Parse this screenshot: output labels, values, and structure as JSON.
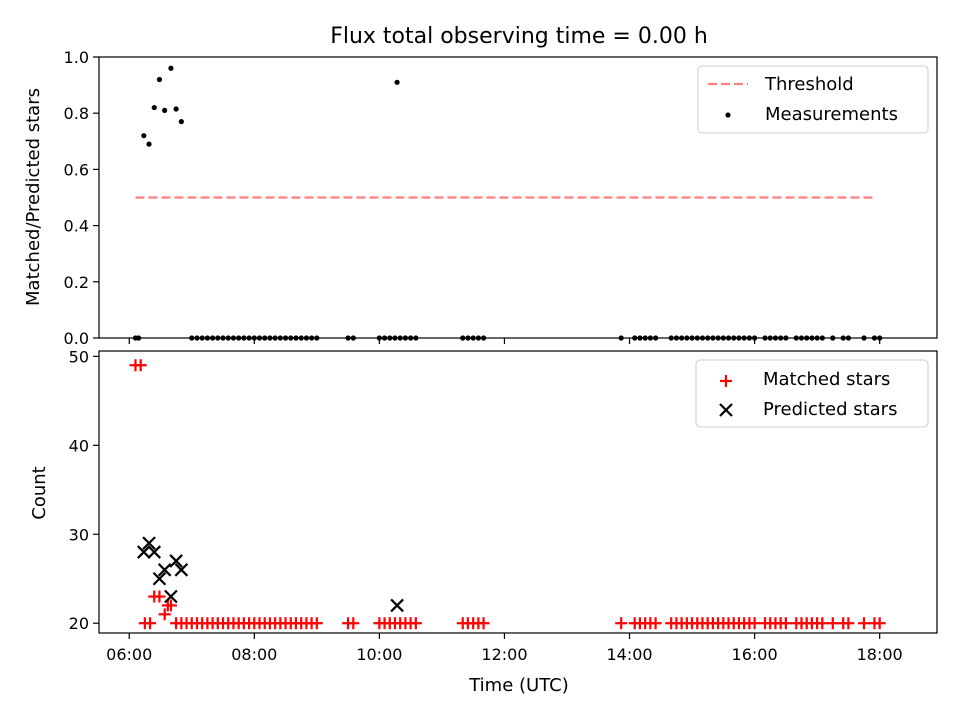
{
  "chart_data": [
    {
      "type": "scatter",
      "title": "Flux total observing time = 0.00 h",
      "xlabel": "",
      "ylabel": "Matched/Predicted stars",
      "xlim": [
        "05:31",
        "18:55"
      ],
      "ylim": [
        0,
        1
      ],
      "yticks": [
        "0.0",
        "0.2",
        "0.4",
        "0.6",
        "0.8",
        "1.0"
      ],
      "legend_position": "top-right",
      "threshold": {
        "name": "Threshold",
        "value": 0.5,
        "x_range": [
          "06:06",
          "17:57"
        ],
        "color": "#ff7f7f"
      },
      "measurements": {
        "name": "Measurements",
        "color": "#000000",
        "x": [
          "06:06",
          "06:09",
          "06:14",
          "06:19",
          "06:24",
          "06:29",
          "06:34",
          "06:40",
          "06:45",
          "06:50",
          "07:00",
          "07:05",
          "07:10",
          "07:15",
          "07:20",
          "07:25",
          "07:30",
          "07:35",
          "07:40",
          "07:45",
          "07:50",
          "07:55",
          "08:00",
          "08:05",
          "08:10",
          "08:15",
          "08:20",
          "08:25",
          "08:30",
          "08:35",
          "08:40",
          "08:45",
          "08:50",
          "08:55",
          "09:00",
          "09:30",
          "09:35",
          "10:00",
          "10:05",
          "10:10",
          "10:15",
          "10:20",
          "10:25",
          "10:30",
          "10:35",
          "11:20",
          "11:25",
          "11:30",
          "11:35",
          "11:40",
          "13:52",
          "14:05",
          "14:10",
          "14:15",
          "14:20",
          "14:25",
          "14:40",
          "14:45",
          "14:50",
          "14:55",
          "15:00",
          "15:05",
          "15:10",
          "15:15",
          "15:20",
          "15:25",
          "15:30",
          "15:35",
          "15:40",
          "15:45",
          "15:50",
          "15:55",
          "16:00",
          "16:10",
          "16:15",
          "16:20",
          "16:25",
          "16:30",
          "16:40",
          "16:45",
          "16:50",
          "16:55",
          "17:00",
          "17:05",
          "17:15",
          "17:25",
          "17:30",
          "17:45",
          "17:55",
          "18:00",
          "10:17"
        ],
        "y": [
          0,
          0,
          0.72,
          0.69,
          0.82,
          0.92,
          0.81,
          0.96,
          0.815,
          0.77,
          0,
          0,
          0,
          0,
          0,
          0,
          0,
          0,
          0,
          0,
          0,
          0,
          0,
          0,
          0,
          0,
          0,
          0,
          0,
          0,
          0,
          0,
          0,
          0,
          0,
          0,
          0,
          0,
          0,
          0,
          0,
          0,
          0,
          0,
          0,
          0,
          0,
          0,
          0,
          0,
          0,
          0,
          0,
          0,
          0,
          0,
          0,
          0,
          0,
          0,
          0,
          0,
          0,
          0,
          0,
          0,
          0,
          0,
          0,
          0,
          0,
          0,
          0,
          0,
          0,
          0,
          0,
          0,
          0,
          0,
          0,
          0,
          0,
          0,
          0,
          0,
          0,
          0,
          0,
          0,
          0.91
        ]
      }
    },
    {
      "type": "scatter",
      "title": "",
      "xlabel": "Time (UTC)",
      "ylabel": "Count",
      "xlim": [
        "05:31",
        "18:55"
      ],
      "ylim": [
        18.9,
        50.6
      ],
      "xticks": [
        "06:00",
        "08:00",
        "10:00",
        "12:00",
        "14:00",
        "16:00",
        "18:00"
      ],
      "yticks": [
        "20",
        "30",
        "40",
        "50"
      ],
      "legend_position": "top-right",
      "series": [
        {
          "name": "Matched stars",
          "marker": "plus",
          "color": "#ff0000",
          "x": [
            "06:06",
            "06:11",
            "06:15",
            "06:20",
            "06:24",
            "06:29",
            "06:34",
            "06:37",
            "06:40",
            "06:45",
            "06:50",
            "06:55",
            "07:00",
            "07:05",
            "07:10",
            "07:15",
            "07:20",
            "07:25",
            "07:30",
            "07:35",
            "07:40",
            "07:45",
            "07:50",
            "07:55",
            "08:00",
            "08:05",
            "08:10",
            "08:15",
            "08:20",
            "08:25",
            "08:30",
            "08:35",
            "08:40",
            "08:45",
            "08:50",
            "08:55",
            "09:00",
            "09:30",
            "09:35",
            "10:00",
            "10:05",
            "10:10",
            "10:15",
            "10:20",
            "10:25",
            "10:30",
            "10:35",
            "11:20",
            "11:25",
            "11:30",
            "11:35",
            "11:40",
            "13:52",
            "14:05",
            "14:10",
            "14:15",
            "14:20",
            "14:25",
            "14:40",
            "14:45",
            "14:50",
            "14:55",
            "15:00",
            "15:05",
            "15:10",
            "15:15",
            "15:20",
            "15:25",
            "15:30",
            "15:35",
            "15:40",
            "15:45",
            "15:50",
            "15:55",
            "16:00",
            "16:10",
            "16:15",
            "16:20",
            "16:25",
            "16:30",
            "16:40",
            "16:45",
            "16:50",
            "16:55",
            "17:00",
            "17:05",
            "17:15",
            "17:25",
            "17:30",
            "17:45",
            "17:55",
            "18:00"
          ],
          "y": [
            49,
            49,
            20,
            20,
            23,
            23,
            21,
            22,
            22,
            20,
            20,
            20,
            20,
            20,
            20,
            20,
            20,
            20,
            20,
            20,
            20,
            20,
            20,
            20,
            20,
            20,
            20,
            20,
            20,
            20,
            20,
            20,
            20,
            20,
            20,
            20,
            20,
            20,
            20,
            20,
            20,
            20,
            20,
            20,
            20,
            20,
            20,
            20,
            20,
            20,
            20,
            20,
            20,
            20,
            20,
            20,
            20,
            20,
            20,
            20,
            20,
            20,
            20,
            20,
            20,
            20,
            20,
            20,
            20,
            20,
            20,
            20,
            20,
            20,
            20,
            20,
            20,
            20,
            20,
            20,
            20,
            20,
            20,
            20,
            20,
            20,
            20,
            20,
            20,
            20,
            20,
            20
          ]
        },
        {
          "name": "Predicted stars",
          "marker": "x",
          "color": "#000000",
          "x": [
            "06:14",
            "06:19",
            "06:24",
            "06:29",
            "06:34",
            "06:40",
            "06:45",
            "06:50",
            "10:17"
          ],
          "y": [
            28,
            29,
            28,
            25,
            26,
            23,
            27,
            26,
            22
          ]
        }
      ]
    }
  ]
}
